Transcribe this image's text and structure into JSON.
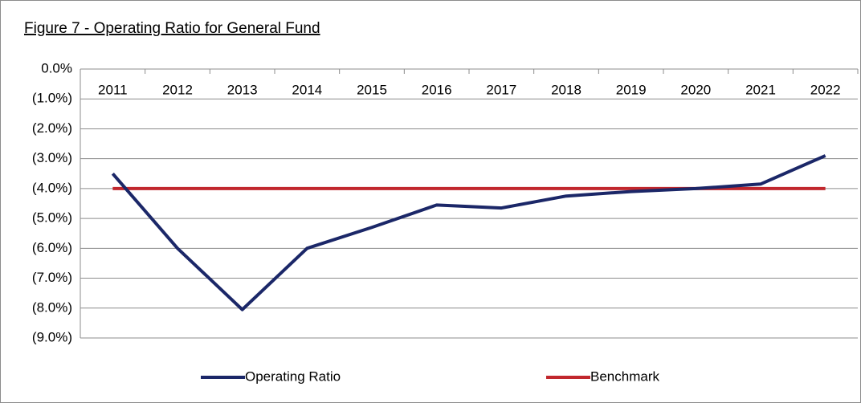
{
  "chart_data": {
    "type": "line",
    "title": "Figure 7 - Operating Ratio for General Fund",
    "categories": [
      "2011",
      "2012",
      "2013",
      "2014",
      "2015",
      "2016",
      "2017",
      "2018",
      "2019",
      "2020",
      "2021",
      "2022"
    ],
    "series": [
      {
        "name": "Operating Ratio",
        "color": "#1b2768",
        "values": [
          -3.5,
          -6.0,
          -8.05,
          -6.0,
          -5.3,
          -4.55,
          -4.65,
          -4.25,
          -4.1,
          -4.0,
          -3.85,
          -2.9
        ]
      },
      {
        "name": "Benchmark",
        "color": "#c1272d",
        "values": [
          -4,
          -4,
          -4,
          -4,
          -4,
          -4,
          -4,
          -4,
          -4,
          -4,
          -4,
          -4
        ]
      }
    ],
    "ylim": [
      -9,
      0
    ],
    "yticks": [
      {
        "value": 0,
        "label": "0.0%"
      },
      {
        "value": -1,
        "label": "(1.0%)"
      },
      {
        "value": -2,
        "label": "(2.0%)"
      },
      {
        "value": -3,
        "label": "(3.0%)"
      },
      {
        "value": -4,
        "label": "(4.0%)"
      },
      {
        "value": -5,
        "label": "(5.0%)"
      },
      {
        "value": -6,
        "label": "(6.0%)"
      },
      {
        "value": -7,
        "label": "(7.0%)"
      },
      {
        "value": -8,
        "label": "(8.0%)"
      },
      {
        "value": -9,
        "label": "(9.0%)"
      }
    ],
    "grid": true,
    "legend": "bottom"
  }
}
